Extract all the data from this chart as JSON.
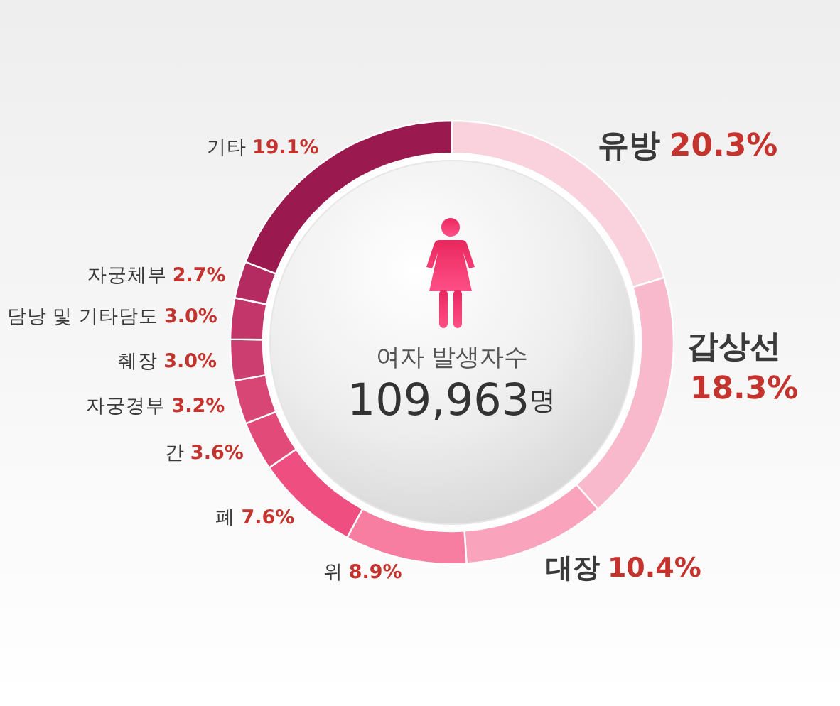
{
  "chart_data": {
    "type": "donut",
    "categories": [
      "유방",
      "갑상선",
      "대장",
      "위",
      "폐",
      "간",
      "자궁경부",
      "췌장",
      "담낭 및 기타담도",
      "자궁체부",
      "기타"
    ],
    "values": [
      20.3,
      18.3,
      10.4,
      8.9,
      7.6,
      3.6,
      3.2,
      3.0,
      3.0,
      2.7,
      19.1
    ],
    "colors": [
      "#f9d2de",
      "#f8b9cc",
      "#f9a3bc",
      "#f77ea1",
      "#ee4f80",
      "#e24a7a",
      "#d84676",
      "#cd3e70",
      "#c2366a",
      "#b32b61",
      "#9a1a4f"
    ],
    "value_labels": [
      "20.3%",
      "18.3%",
      "10.4%",
      "8.9%",
      "7.6%",
      "3.6%",
      "3.2%",
      "3.0%",
      "3.0%",
      "2.7%",
      "19.1%"
    ],
    "annotations": [
      "여자 발생자수",
      "109,963명"
    ]
  }
}
